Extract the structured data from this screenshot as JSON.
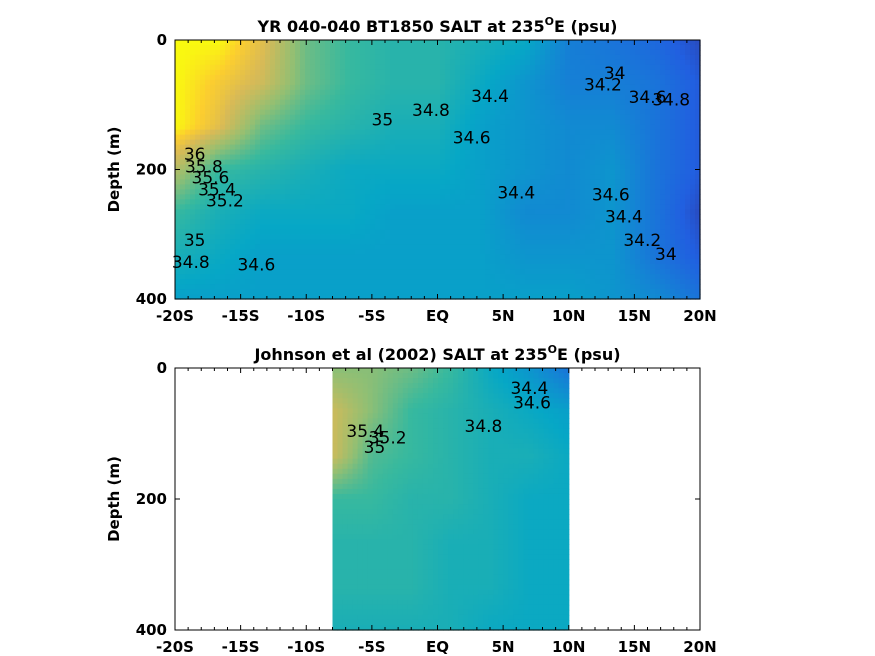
{
  "chart_data": [
    {
      "type": "heatmap",
      "title_main": "YR 040-040 BT1850 SALT at 235",
      "title_sup": "O",
      "title_tail": "E (psu)",
      "ylabel": "Depth (m)",
      "xlim": [
        -20,
        20
      ],
      "ylim": [
        0,
        400
      ],
      "y_reversed": true,
      "x_ticks": [
        -20,
        -15,
        -10,
        -5,
        0,
        5,
        10,
        15,
        20
      ],
      "x_tick_labels": [
        "-20S",
        "-15S",
        "-10S",
        "-5S",
        "EQ",
        "5N",
        "10N",
        "15N",
        "20N"
      ],
      "y_ticks": [
        0,
        200,
        400
      ],
      "y_tick_labels": [
        "0",
        "200",
        "400"
      ],
      "color_scale": {
        "min": 33.7,
        "max": 36.0
      },
      "data_extent": [
        -20,
        20
      ],
      "grid": [
        [
          36.0,
          36.0,
          35.7,
          35.2,
          35.0,
          34.9,
          34.9,
          34.8,
          34.7,
          34.3,
          34.2,
          34.1,
          33.9
        ],
        [
          36.0,
          35.8,
          35.6,
          35.2,
          35.0,
          34.9,
          34.9,
          34.7,
          34.5,
          34.3,
          34.3,
          34.2,
          34.0
        ],
        [
          36.0,
          35.7,
          35.2,
          35.0,
          34.9,
          34.8,
          34.8,
          34.6,
          34.5,
          34.4,
          34.4,
          34.2,
          34.0
        ],
        [
          35.5,
          35.0,
          34.9,
          34.8,
          34.7,
          34.7,
          34.7,
          34.6,
          34.5,
          34.4,
          34.5,
          34.2,
          34.0
        ],
        [
          35.0,
          34.8,
          34.7,
          34.7,
          34.7,
          34.6,
          34.6,
          34.6,
          34.4,
          34.4,
          34.5,
          34.2,
          33.9
        ],
        [
          34.8,
          34.7,
          34.6,
          34.6,
          34.6,
          34.6,
          34.6,
          34.6,
          34.5,
          34.5,
          34.5,
          34.2,
          34.0
        ],
        [
          34.6,
          34.6,
          34.6,
          34.6,
          34.6,
          34.6,
          34.6,
          34.6,
          34.6,
          34.6,
          34.5,
          34.4,
          34.2
        ]
      ],
      "contour_labels": [
        {
          "text": "36",
          "x": -18.5,
          "y": 185
        },
        {
          "text": "35.8",
          "x": -17.8,
          "y": 205
        },
        {
          "text": "35.6",
          "x": -17.3,
          "y": 222
        },
        {
          "text": "35.4",
          "x": -16.8,
          "y": 240
        },
        {
          "text": "35.2",
          "x": -16.2,
          "y": 257
        },
        {
          "text": "35",
          "x": -18.5,
          "y": 318
        },
        {
          "text": "34.8",
          "x": -18.8,
          "y": 352
        },
        {
          "text": "34.6",
          "x": -13.8,
          "y": 356
        },
        {
          "text": "35",
          "x": -4.2,
          "y": 132
        },
        {
          "text": "34.8",
          "x": -0.5,
          "y": 117
        },
        {
          "text": "34.4",
          "x": 4.0,
          "y": 96
        },
        {
          "text": "34.6",
          "x": 2.6,
          "y": 160
        },
        {
          "text": "34.4",
          "x": 6.0,
          "y": 245
        },
        {
          "text": "34",
          "x": 13.5,
          "y": 60
        },
        {
          "text": "34.2",
          "x": 12.6,
          "y": 78
        },
        {
          "text": "34.6",
          "x": 16.0,
          "y": 97
        },
        {
          "text": "34.8",
          "x": 17.8,
          "y": 101
        },
        {
          "text": "34.6",
          "x": 13.2,
          "y": 248
        },
        {
          "text": "34.4",
          "x": 14.2,
          "y": 282
        },
        {
          "text": "34.2",
          "x": 15.6,
          "y": 318
        },
        {
          "text": "34",
          "x": 17.4,
          "y": 340
        }
      ]
    },
    {
      "type": "heatmap",
      "title_main": "Johnson et al (2002) SALT at 235",
      "title_sup": "O",
      "title_tail": "E (psu)",
      "ylabel": "Depth (m)",
      "xlim": [
        -20,
        20
      ],
      "ylim": [
        0,
        400
      ],
      "y_reversed": true,
      "x_ticks": [
        -20,
        -15,
        -10,
        -5,
        0,
        5,
        10,
        15,
        20
      ],
      "x_tick_labels": [
        "-20S",
        "-15S",
        "-10S",
        "-5S",
        "EQ",
        "5N",
        "10N",
        "15N",
        "20N"
      ],
      "y_ticks": [
        0,
        200,
        400
      ],
      "y_tick_labels": [
        "0",
        "200",
        "400"
      ],
      "color_scale": {
        "min": 33.7,
        "max": 36.0
      },
      "data_extent": [
        -8,
        10
      ],
      "grid": [
        [
          35.3,
          35.3,
          35.2,
          35.0,
          34.7,
          34.5,
          34.2
        ],
        [
          35.6,
          35.3,
          35.0,
          34.9,
          34.8,
          34.7,
          34.6
        ],
        [
          35.6,
          35.1,
          35.0,
          34.9,
          34.8,
          34.8,
          34.7
        ],
        [
          35.0,
          35.0,
          34.9,
          34.9,
          34.8,
          34.7,
          34.7
        ],
        [
          34.9,
          34.9,
          34.9,
          34.8,
          34.8,
          34.7,
          34.7
        ],
        [
          34.9,
          34.9,
          34.9,
          34.8,
          34.8,
          34.7,
          34.7
        ],
        [
          34.8,
          34.8,
          34.8,
          34.8,
          34.7,
          34.7,
          34.7
        ]
      ],
      "contour_labels": [
        {
          "text": "35.4",
          "x": -5.5,
          "y": 105
        },
        {
          "text": "35.2",
          "x": -3.8,
          "y": 115
        },
        {
          "text": "35",
          "x": -4.8,
          "y": 130
        },
        {
          "text": "34.8",
          "x": 3.5,
          "y": 98
        },
        {
          "text": "34.4",
          "x": 7.0,
          "y": 40
        },
        {
          "text": "34.6",
          "x": 7.2,
          "y": 62
        }
      ]
    }
  ]
}
